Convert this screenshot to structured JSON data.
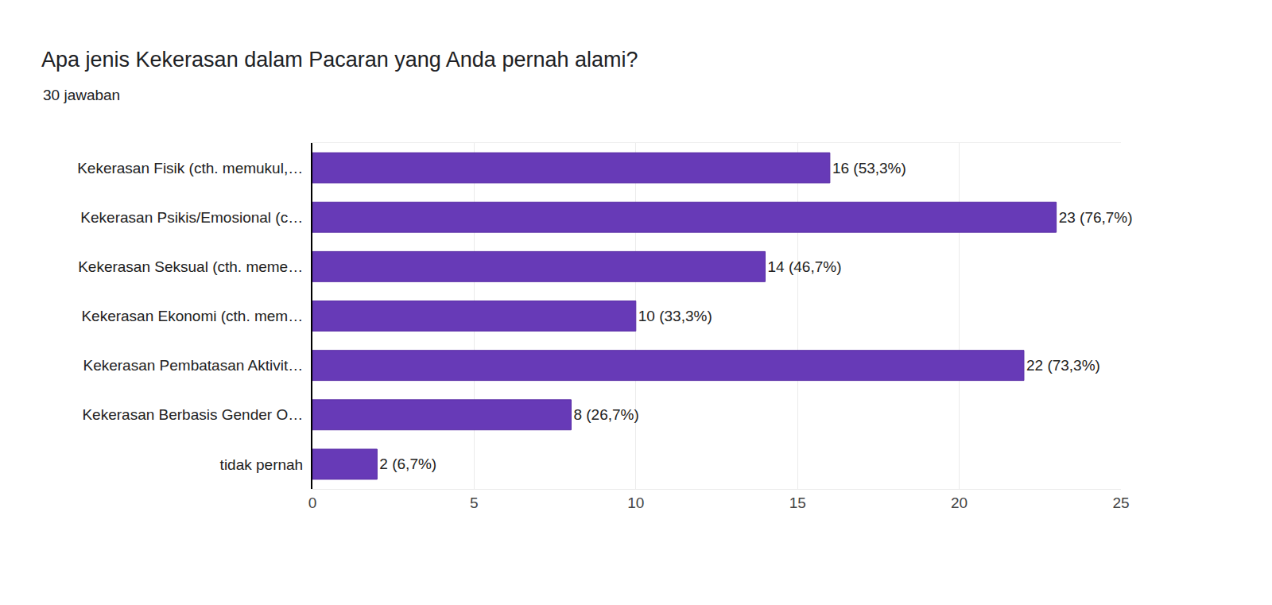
{
  "chart_data": {
    "type": "bar",
    "orientation": "horizontal",
    "title": "Apa jenis Kekerasan dalam Pacaran yang Anda pernah alami?",
    "subtitle": "30 jawaban",
    "categories": [
      "Kekerasan Fisik (cth. memukul,…",
      "Kekerasan Psikis/Emosional (c…",
      "Kekerasan Seksual (cth. meme…",
      "Kekerasan Ekonomi (cth. mem…",
      "Kekerasan Pembatasan Aktivit…",
      "Kekerasan Berbasis Gender O…",
      "tidak pernah"
    ],
    "values": [
      16,
      23,
      14,
      10,
      22,
      8,
      2
    ],
    "value_labels": [
      "16 (53,3%)",
      "23 (76,7%)",
      "14 (46,7%)",
      "10 (33,3%)",
      "22 (73,3%)",
      "8 (26,7%)",
      "2 (6,7%)"
    ],
    "data_labels": true,
    "color": "#673ab7",
    "xlim": [
      0,
      25
    ],
    "xticks": [
      0,
      5,
      10,
      15,
      20,
      25
    ],
    "grid": true
  }
}
